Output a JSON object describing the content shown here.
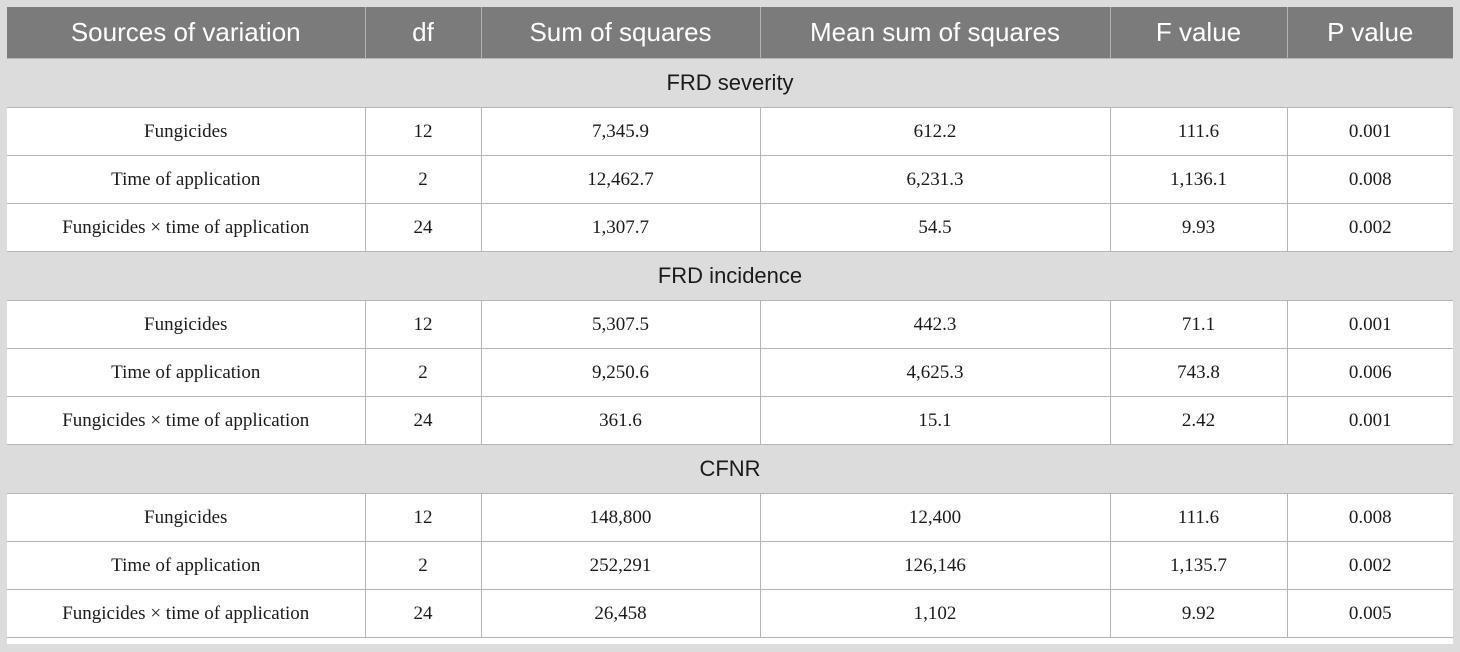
{
  "table": {
    "headers": [
      "Sources of variation",
      "df",
      "Sum of squares",
      "Mean sum of squares",
      "F value",
      "P value"
    ],
    "sections": [
      {
        "title": "FRD severity",
        "rows": [
          [
            "Fungicides",
            "12",
            "7,345.9",
            "612.2",
            "111.6",
            "0.001"
          ],
          [
            "Time of application",
            "2",
            "12,462.7",
            "6,231.3",
            "1,136.1",
            "0.008"
          ],
          [
            "Fungicides × time of application",
            "24",
            "1,307.7",
            "54.5",
            "9.93",
            "0.002"
          ]
        ]
      },
      {
        "title": "FRD incidence",
        "rows": [
          [
            "Fungicides",
            "12",
            "5,307.5",
            "442.3",
            "71.1",
            "0.001"
          ],
          [
            "Time of application",
            "2",
            "9,250.6",
            "4,625.3",
            "743.8",
            "0.006"
          ],
          [
            "Fungicides × time of application",
            "24",
            "361.6",
            "15.1",
            "2.42",
            "0.001"
          ]
        ]
      },
      {
        "title": "CFNR",
        "rows": [
          [
            "Fungicides",
            "12",
            "148,800",
            "12,400",
            "111.6",
            "0.008"
          ],
          [
            "Time of application",
            "2",
            "252,291",
            "126,146",
            "1,135.7",
            "0.002"
          ],
          [
            "Fungicides × time of application",
            "24",
            "26,458",
            "1,102",
            "9.92",
            "0.005"
          ]
        ]
      }
    ]
  }
}
